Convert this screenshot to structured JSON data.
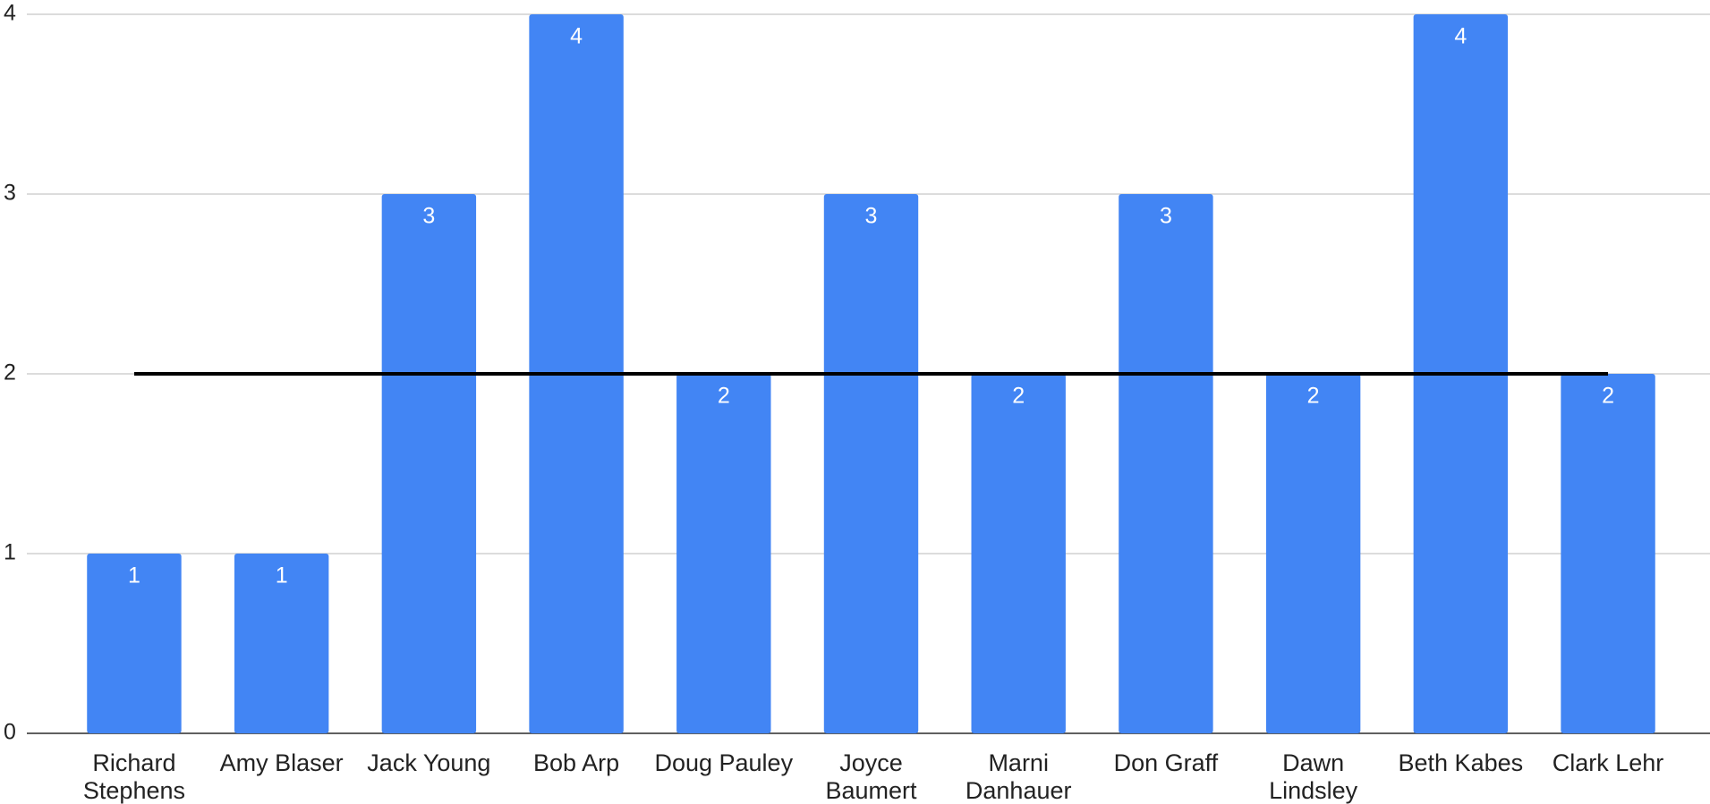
{
  "chart_data": {
    "type": "bar",
    "categories": [
      "Richard Stephens",
      "Amy Blaser",
      "Jack Young",
      "Bob Arp",
      "Doug Pauley",
      "Joyce Baumert",
      "Marni Danhauer",
      "Don Graff",
      "Dawn Lindsley",
      "Beth Kabes",
      "Clark Lehr"
    ],
    "series": [
      {
        "type": "bar",
        "color": "#4285f4",
        "values": [
          1,
          1,
          3,
          4,
          2,
          3,
          2,
          3,
          2,
          4,
          2
        ],
        "data_labels": true
      },
      {
        "type": "line",
        "color": "#000000",
        "values": [
          2,
          2,
          2,
          2,
          2,
          2,
          2,
          2,
          2,
          2,
          2
        ]
      }
    ],
    "ylim": [
      0,
      4
    ],
    "yticks": [
      0,
      1,
      2,
      3,
      4
    ],
    "grid": true
  }
}
